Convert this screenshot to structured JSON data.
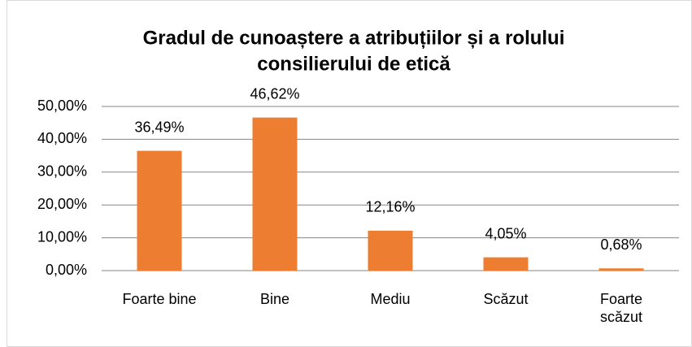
{
  "chart_data": {
    "type": "bar",
    "title": [
      "Gradul de cunoaștere a atribuțiilor și a rolului",
      "consilierului de etică"
    ],
    "categories": [
      "Foarte bine",
      "Bine",
      "Mediu",
      "Scăzut",
      "Foarte scăzut"
    ],
    "values": [
      36.49,
      46.62,
      12.16,
      4.05,
      0.68
    ],
    "value_labels": [
      "36,49%",
      "46,62%",
      "12,16%",
      "4,05%",
      "0,68%"
    ],
    "color": "#ed7d31",
    "ylim": [
      0,
      50
    ],
    "yticks": [
      {
        "value": 0,
        "label": "0,00%"
      },
      {
        "value": 10,
        "label": "10,00%"
      },
      {
        "value": 20,
        "label": "20,00%"
      },
      {
        "value": 30,
        "label": "30,00%"
      },
      {
        "value": 40,
        "label": "40,00%"
      },
      {
        "value": 50,
        "label": "50,00%"
      }
    ],
    "grid": true
  }
}
